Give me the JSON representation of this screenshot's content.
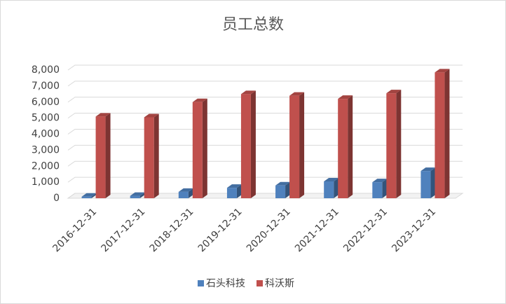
{
  "chart_data": {
    "type": "bar3d",
    "title": "员工总数",
    "categories": [
      "2016-12-31",
      "2017-12-31",
      "2018-12-31",
      "2019-12-31",
      "2020-12-31",
      "2021-12-31",
      "2022-12-31",
      "2023-12-31"
    ],
    "series": [
      {
        "name": "石头科技",
        "color": "#4f81bd",
        "values": [
          100,
          150,
          400,
          650,
          800,
          1050,
          1000,
          1700
        ]
      },
      {
        "name": "科沃斯",
        "color": "#c0504d",
        "values": [
          5100,
          5050,
          6000,
          6500,
          6400,
          6200,
          6550,
          7850
        ]
      }
    ],
    "ylim": [
      0,
      8000
    ],
    "yticks": [
      0,
      {
        "value": 1000,
        "label": "1,000"
      },
      {
        "value": 2000,
        "label": "2,000"
      },
      {
        "value": 3000,
        "label": "3,000"
      },
      {
        "value": 4000,
        "label": "4,000"
      },
      {
        "value": 5000,
        "label": "5,000"
      },
      {
        "value": 6000,
        "label": "6,000"
      },
      {
        "value": 7000,
        "label": "7,000"
      },
      {
        "value": 8000,
        "label": "8,000"
      }
    ],
    "grid": true,
    "legend": "bottom"
  }
}
